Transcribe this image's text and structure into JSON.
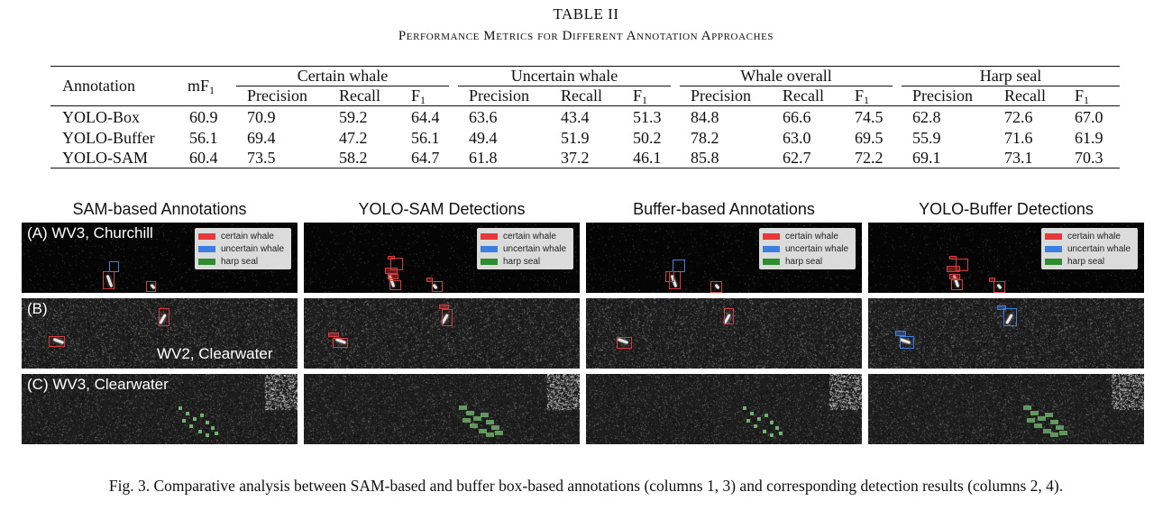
{
  "table": {
    "number": "TABLE II",
    "caption": "Performance Metrics for Different Annotation Approaches",
    "col_annotation": "Annotation",
    "col_mf1": "mF",
    "f1_sub": "1",
    "groups": [
      "Certain whale",
      "Uncertain whale",
      "Whale overall",
      "Harp seal"
    ],
    "subheaders": [
      "Precision",
      "Recall",
      "F"
    ],
    "rows": [
      {
        "name": "YOLO-Box",
        "mf1": "60.9",
        "values": [
          "70.9",
          "59.2",
          "64.4",
          "63.6",
          "43.4",
          "51.3",
          "84.8",
          "66.6",
          "74.5",
          "62.8",
          "72.6",
          "67.0"
        ]
      },
      {
        "name": "YOLO-Buffer",
        "mf1": "56.1",
        "values": [
          "69.4",
          "47.2",
          "56.1",
          "49.4",
          "51.9",
          "50.2",
          "78.2",
          "63.0",
          "69.5",
          "55.9",
          "71.6",
          "61.9"
        ]
      },
      {
        "name": "YOLO-SAM",
        "mf1": "60.4",
        "values": [
          "73.5",
          "58.2",
          "64.7",
          "61.8",
          "37.2",
          "46.1",
          "85.8",
          "62.7",
          "72.2",
          "69.1",
          "73.1",
          "70.3"
        ]
      }
    ]
  },
  "figure": {
    "columns": [
      "SAM-based Annotations",
      "YOLO-SAM Detections",
      "Buffer-based Annotations",
      "YOLO-Buffer Detections"
    ],
    "row_labels": [
      "(A) WV3, Churchill",
      "(B)",
      "(C) WV3, Clearwater"
    ],
    "extra_label": "WV2, Clearwater",
    "legend": [
      {
        "label": "certain whale",
        "color": "#e8393a"
      },
      {
        "label": "uncertain whale",
        "color": "#3d7fe0"
      },
      {
        "label": "harp seal",
        "color": "#2e8b2e"
      }
    ],
    "caption": "Fig. 3.  Comparative analysis between SAM-based and buffer box-based annotations (columns 1, 3) and corresponding detection results (columns 2, 4)."
  }
}
